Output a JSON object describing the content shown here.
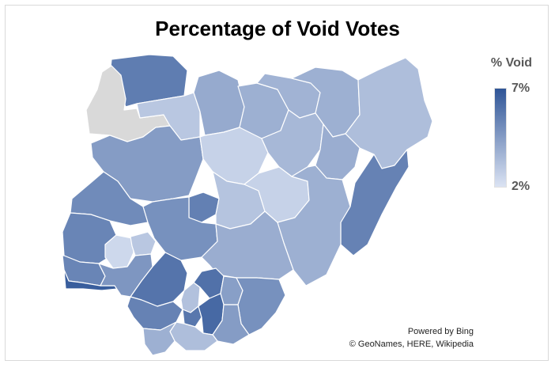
{
  "title": "Percentage of Void Votes",
  "legend": {
    "title": "% Void",
    "max_label": "7%",
    "min_label": "2%",
    "max_value": 7,
    "min_value": 2,
    "color_max": "#2f5597",
    "color_min": "#dbe3f3",
    "no_data_color": "#d9d9d9"
  },
  "attribution": {
    "powered_by": "Powered by Bing",
    "sources": "© GeoNames, HERE, Wikipedia"
  },
  "regions": [
    {
      "id": "sokoto",
      "value": 5.6
    },
    {
      "id": "kebbi",
      "value": null
    },
    {
      "id": "zamfara",
      "value": 3.0
    },
    {
      "id": "katsina",
      "value": 4.0
    },
    {
      "id": "kano",
      "value": 3.8
    },
    {
      "id": "jigawa",
      "value": 3.7
    },
    {
      "id": "yobe",
      "value": 3.8
    },
    {
      "id": "borno",
      "value": 3.3
    },
    {
      "id": "niger",
      "value": 4.5
    },
    {
      "id": "kaduna",
      "value": 2.6
    },
    {
      "id": "bauchi",
      "value": 3.5
    },
    {
      "id": "gombe",
      "value": 3.9
    },
    {
      "id": "adamawa",
      "value": 5.4
    },
    {
      "id": "kwara",
      "value": 5.1
    },
    {
      "id": "fct",
      "value": 5.5
    },
    {
      "id": "nasarawa",
      "value": 3.1
    },
    {
      "id": "plateau",
      "value": 2.6
    },
    {
      "id": "taraba",
      "value": 3.8
    },
    {
      "id": "oyo",
      "value": 5.3
    },
    {
      "id": "kogi",
      "value": 4.9
    },
    {
      "id": "benue",
      "value": 3.9
    },
    {
      "id": "ogun",
      "value": 5.3
    },
    {
      "id": "lagos",
      "value": 6.7
    },
    {
      "id": "osun",
      "value": 2.4
    },
    {
      "id": "ekiti",
      "value": 3.0
    },
    {
      "id": "ondo",
      "value": 4.7
    },
    {
      "id": "edo",
      "value": 5.9
    },
    {
      "id": "enugu",
      "value": 6.0
    },
    {
      "id": "ebonyi",
      "value": 4.4
    },
    {
      "id": "cross-river",
      "value": 4.9
    },
    {
      "id": "anambra",
      "value": 3.2
    },
    {
      "id": "delta",
      "value": 5.4
    },
    {
      "id": "imo",
      "value": 5.8
    },
    {
      "id": "abia",
      "value": 6.3
    },
    {
      "id": "akwa-ibom",
      "value": 4.5
    },
    {
      "id": "rivers",
      "value": 3.3
    },
    {
      "id": "bayelsa",
      "value": 3.8
    }
  ]
}
